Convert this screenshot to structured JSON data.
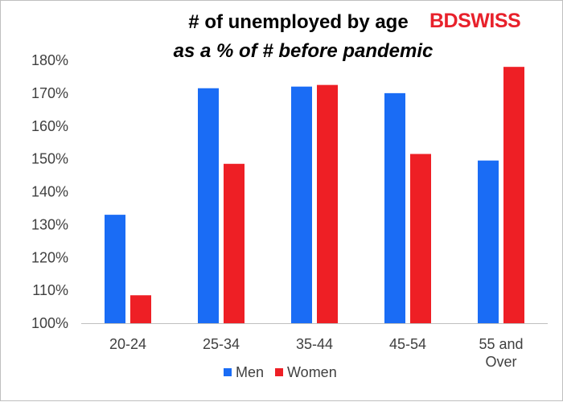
{
  "brand": {
    "logo_text_a": "BD",
    "logo_text_b": "SWISS",
    "logo_color": "#e8212b"
  },
  "chart_data": {
    "type": "bar",
    "title": "# of unemployed by age",
    "subtitle": "as a % of # before pandemic",
    "categories": [
      "20-24",
      "25-34",
      "35-44",
      "45-54",
      "55 and Over"
    ],
    "category_lines": [
      [
        "20-24"
      ],
      [
        "25-34"
      ],
      [
        "35-44"
      ],
      [
        "45-54"
      ],
      [
        "55 and",
        "Over"
      ]
    ],
    "series": [
      {
        "name": "Men",
        "color": "#1a6cf5",
        "values": [
          133,
          171.5,
          172,
          170,
          149.5
        ]
      },
      {
        "name": "Women",
        "color": "#ee1f25",
        "values": [
          108.5,
          148.5,
          172.5,
          151.5,
          178
        ]
      }
    ],
    "ylim": [
      100,
      180
    ],
    "yticks": [
      100,
      110,
      120,
      130,
      140,
      150,
      160,
      170,
      180
    ],
    "ytick_labels": [
      "100%",
      "110%",
      "120%",
      "130%",
      "140%",
      "150%",
      "160%",
      "170%",
      "180%"
    ],
    "grid": false,
    "legend_position": "bottom"
  }
}
